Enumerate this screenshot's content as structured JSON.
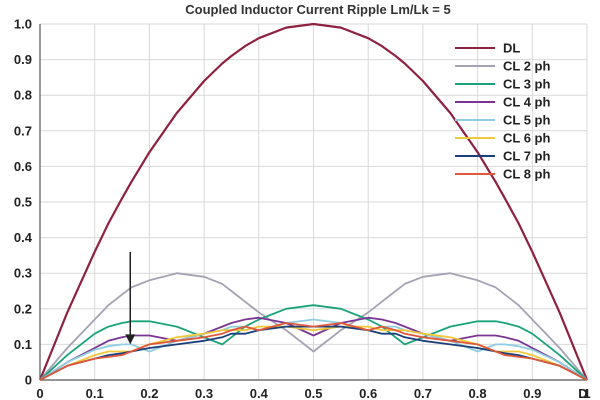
{
  "chart_data": {
    "type": "line",
    "title": "Coupled Inductor Current Ripple Lm/Lk = 5",
    "xlabel": "D",
    "ylabel": "",
    "xlim": [
      0,
      1
    ],
    "ylim": [
      0,
      1.0
    ],
    "grid": true,
    "legend_position": "top-right",
    "x_ticks": [
      "0",
      "0.1",
      "0.2",
      "0.3",
      "0.4",
      "0.5",
      "0.6",
      "0.7",
      "0.8",
      "0.9",
      "1"
    ],
    "y_ticks": [
      "0",
      "0.1",
      "0.2",
      "0.3",
      "0.4",
      "0.5",
      "0.6",
      "0.7",
      "0.8",
      "0.9",
      "1.0"
    ],
    "x": [
      0,
      0.05,
      0.1,
      0.125,
      0.15,
      0.167,
      0.2,
      0.25,
      0.3,
      0.333,
      0.35,
      0.375,
      0.4,
      0.45,
      0.5,
      0.55,
      0.6,
      0.625,
      0.65,
      0.667,
      0.7,
      0.75,
      0.8,
      0.833,
      0.85,
      0.875,
      0.9,
      0.95,
      1
    ],
    "series": [
      {
        "name": "DL",
        "color": "#8e2040",
        "values": [
          0,
          0.19,
          0.36,
          0.44,
          0.51,
          0.556,
          0.64,
          0.75,
          0.84,
          0.889,
          0.91,
          0.938,
          0.96,
          0.99,
          1.0,
          0.99,
          0.96,
          0.938,
          0.91,
          0.889,
          0.84,
          0.75,
          0.64,
          0.556,
          0.51,
          0.44,
          0.36,
          0.19,
          0
        ]
      },
      {
        "name": "CL 2 ph",
        "color": "#a3a3b3",
        "values": [
          0,
          0.09,
          0.17,
          0.21,
          0.24,
          0.26,
          0.28,
          0.3,
          0.29,
          0.27,
          0.25,
          0.22,
          0.19,
          0.14,
          0.08,
          0.14,
          0.19,
          0.22,
          0.25,
          0.27,
          0.29,
          0.3,
          0.28,
          0.26,
          0.24,
          0.21,
          0.17,
          0.09,
          0
        ]
      },
      {
        "name": "CL 3 ph",
        "color": "#1aa37a",
        "values": [
          0,
          0.07,
          0.13,
          0.15,
          0.16,
          0.165,
          0.165,
          0.15,
          0.12,
          0.1,
          0.12,
          0.15,
          0.17,
          0.2,
          0.21,
          0.2,
          0.17,
          0.15,
          0.12,
          0.1,
          0.12,
          0.15,
          0.165,
          0.165,
          0.16,
          0.15,
          0.13,
          0.07,
          0
        ]
      },
      {
        "name": "CL 4 ph",
        "color": "#7a3594",
        "values": [
          0,
          0.05,
          0.09,
          0.11,
          0.12,
          0.125,
          0.125,
          0.11,
          0.13,
          0.15,
          0.16,
          0.17,
          0.175,
          0.16,
          0.125,
          0.16,
          0.175,
          0.17,
          0.16,
          0.15,
          0.13,
          0.11,
          0.125,
          0.125,
          0.12,
          0.11,
          0.09,
          0.05,
          0
        ]
      },
      {
        "name": "CL 5 ph",
        "color": "#8fcde0",
        "values": [
          0,
          0.05,
          0.085,
          0.095,
          0.1,
          0.1,
          0.08,
          0.11,
          0.13,
          0.14,
          0.15,
          0.15,
          0.14,
          0.16,
          0.17,
          0.16,
          0.14,
          0.15,
          0.15,
          0.14,
          0.13,
          0.11,
          0.08,
          0.1,
          0.1,
          0.095,
          0.085,
          0.05,
          0
        ]
      },
      {
        "name": "CL 6 ph",
        "color": "#f0c83a",
        "values": [
          0,
          0.04,
          0.07,
          0.08,
          0.08,
          0.08,
          0.1,
          0.12,
          0.13,
          0.14,
          0.14,
          0.14,
          0.15,
          0.15,
          0.14,
          0.15,
          0.15,
          0.14,
          0.14,
          0.14,
          0.13,
          0.12,
          0.1,
          0.08,
          0.08,
          0.08,
          0.07,
          0.04,
          0
        ]
      },
      {
        "name": "CL 7 ph",
        "color": "#1c3f7a",
        "values": [
          0,
          0.04,
          0.06,
          0.07,
          0.075,
          0.08,
          0.09,
          0.1,
          0.11,
          0.12,
          0.13,
          0.13,
          0.14,
          0.15,
          0.15,
          0.15,
          0.14,
          0.13,
          0.13,
          0.12,
          0.11,
          0.1,
          0.09,
          0.08,
          0.075,
          0.07,
          0.06,
          0.04,
          0
        ]
      },
      {
        "name": "CL 8 ph",
        "color": "#e0583a",
        "values": [
          0,
          0.04,
          0.06,
          0.065,
          0.07,
          0.08,
          0.1,
          0.11,
          0.12,
          0.13,
          0.14,
          0.15,
          0.14,
          0.16,
          0.15,
          0.16,
          0.14,
          0.15,
          0.14,
          0.13,
          0.12,
          0.11,
          0.1,
          0.08,
          0.07,
          0.065,
          0.06,
          0.04,
          0
        ]
      }
    ],
    "annotations": [
      {
        "type": "arrow",
        "x": 0.165,
        "y_from": 0.36,
        "y_to": 0.1,
        "color": "#222222"
      }
    ]
  }
}
